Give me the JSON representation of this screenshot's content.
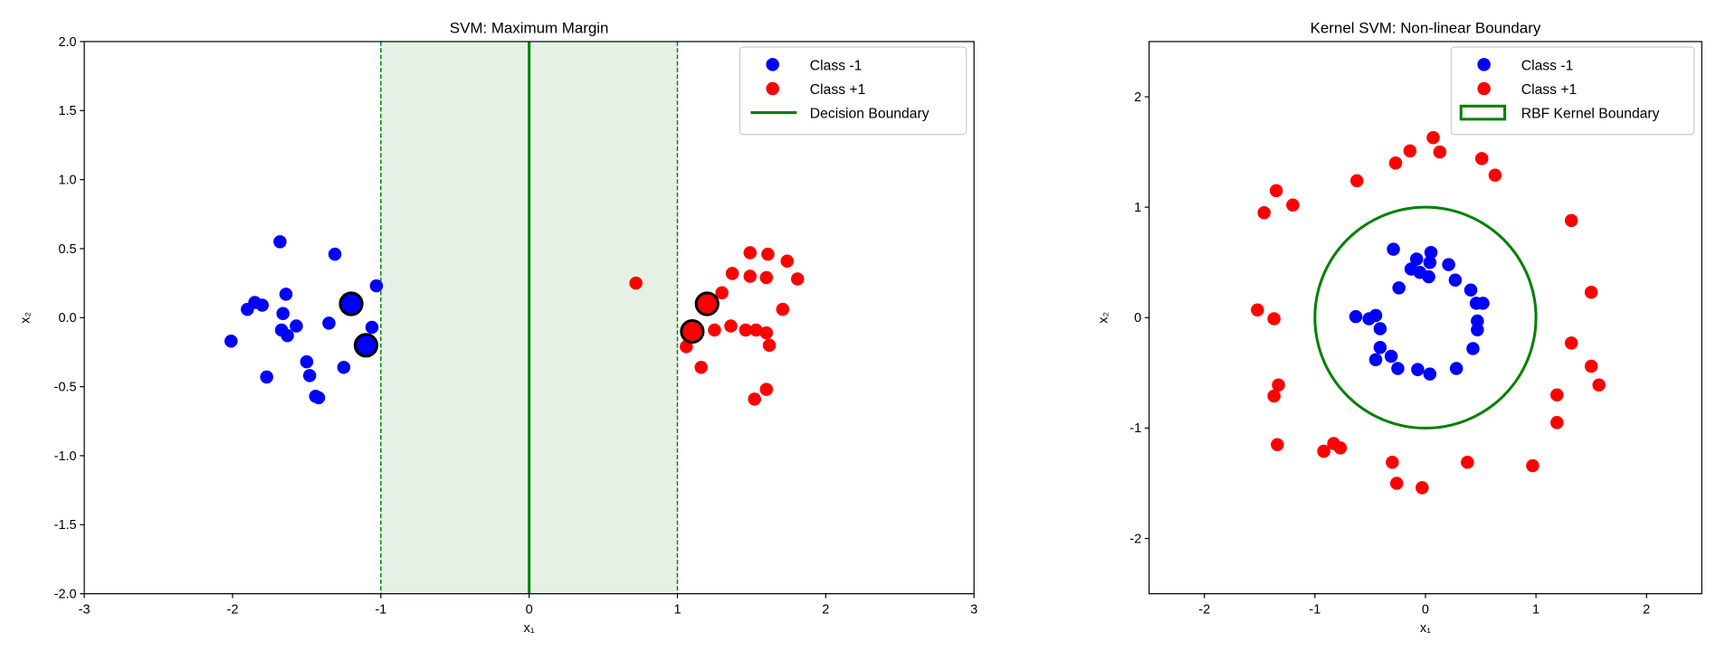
{
  "chart_data": [
    {
      "type": "scatter",
      "title": "SVM: Maximum Margin",
      "xlabel": "x₁",
      "ylabel": "x₂",
      "xlim": [
        -3,
        3
      ],
      "ylim": [
        -2,
        2
      ],
      "xticks": [
        -3,
        -2,
        -1,
        0,
        1,
        2,
        3
      ],
      "yticks": [
        -2.0,
        -1.5,
        -1.0,
        -0.5,
        0.0,
        0.5,
        1.0,
        1.5,
        2.0
      ],
      "ytick_labels": [
        "-2.0",
        "-1.5",
        "-1.0",
        "-0.5",
        "0.0",
        "0.5",
        "1.0",
        "1.5",
        "2.0"
      ],
      "grid": false,
      "legend_position": "top-right",
      "decision_boundary": {
        "x": 0,
        "color": "#008000",
        "label": "Decision Boundary"
      },
      "margin_lines": {
        "x": [
          -1,
          1
        ],
        "color": "#008000",
        "style": "dashed"
      },
      "margin_fill": {
        "from": -1,
        "to": 1,
        "color": "#e4f1e4"
      },
      "series": [
        {
          "name": "Class -1",
          "color": "#0000ff",
          "points": [
            [
              -1.68,
              0.55
            ],
            [
              -1.31,
              0.46
            ],
            [
              -1.03,
              0.23
            ],
            [
              -1.64,
              0.17
            ],
            [
              -1.85,
              0.11
            ],
            [
              -1.8,
              0.09
            ],
            [
              -1.9,
              0.06
            ],
            [
              -1.66,
              0.03
            ],
            [
              -1.35,
              -0.04
            ],
            [
              -1.57,
              -0.06
            ],
            [
              -1.67,
              -0.09
            ],
            [
              -1.06,
              -0.07
            ],
            [
              -1.63,
              -0.13
            ],
            [
              -2.01,
              -0.17
            ],
            [
              -1.5,
              -0.32
            ],
            [
              -1.25,
              -0.36
            ],
            [
              -1.48,
              -0.42
            ],
            [
              -1.77,
              -0.43
            ],
            [
              -1.42,
              -0.58
            ],
            [
              -1.44,
              -0.57
            ]
          ]
        },
        {
          "name": "Class +1",
          "color": "#ff0000",
          "points": [
            [
              0.72,
              0.25
            ],
            [
              1.49,
              0.47
            ],
            [
              1.61,
              0.46
            ],
            [
              1.74,
              0.41
            ],
            [
              1.37,
              0.32
            ],
            [
              1.49,
              0.3
            ],
            [
              1.6,
              0.29
            ],
            [
              1.81,
              0.28
            ],
            [
              1.3,
              0.18
            ],
            [
              1.71,
              0.06
            ],
            [
              1.36,
              -0.06
            ],
            [
              1.25,
              -0.09
            ],
            [
              1.46,
              -0.09
            ],
            [
              1.53,
              -0.09
            ],
            [
              1.6,
              -0.11
            ],
            [
              1.62,
              -0.2
            ],
            [
              1.06,
              -0.21
            ],
            [
              1.16,
              -0.36
            ],
            [
              1.6,
              -0.52
            ],
            [
              1.52,
              -0.59
            ]
          ]
        }
      ],
      "support_vectors": [
        {
          "x": -1.2,
          "y": 0.1,
          "class": "Class -1"
        },
        {
          "x": -1.1,
          "y": -0.2,
          "class": "Class -1"
        },
        {
          "x": 1.2,
          "y": 0.1,
          "class": "Class +1"
        },
        {
          "x": 1.1,
          "y": -0.1,
          "class": "Class +1"
        }
      ]
    },
    {
      "type": "scatter",
      "title": "Kernel SVM: Non-linear Boundary",
      "xlabel": "x₁",
      "ylabel": "x₂",
      "xlim": [
        -2.5,
        2.5
      ],
      "ylim": [
        -2.5,
        2.5
      ],
      "xticks": [
        -2,
        -1,
        0,
        1,
        2
      ],
      "yticks": [
        -2,
        -1,
        0,
        1,
        2
      ],
      "ytick_labels": [
        "-2",
        "-1",
        "0",
        "1",
        "2"
      ],
      "grid": false,
      "legend_position": "top-right",
      "boundary_circle": {
        "center": [
          0,
          0
        ],
        "radius": 1.0,
        "color": "#008000",
        "label": "RBF Kernel Boundary"
      },
      "series": [
        {
          "name": "Class -1",
          "color": "#0000ff",
          "points": [
            [
              -0.29,
              0.62
            ],
            [
              -0.08,
              0.53
            ],
            [
              0.05,
              0.59
            ],
            [
              0.04,
              0.5
            ],
            [
              -0.13,
              0.44
            ],
            [
              -0.05,
              0.41
            ],
            [
              0.03,
              0.37
            ],
            [
              0.21,
              0.48
            ],
            [
              0.27,
              0.34
            ],
            [
              -0.24,
              0.27
            ],
            [
              0.41,
              0.25
            ],
            [
              0.46,
              0.13
            ],
            [
              0.52,
              0.13
            ],
            [
              0.47,
              -0.03
            ],
            [
              0.47,
              -0.11
            ],
            [
              -0.63,
              0.01
            ],
            [
              -0.51,
              -0.01
            ],
            [
              -0.45,
              0.02
            ],
            [
              -0.41,
              -0.1
            ],
            [
              -0.41,
              -0.27
            ],
            [
              -0.31,
              -0.35
            ],
            [
              -0.45,
              -0.38
            ],
            [
              -0.25,
              -0.46
            ],
            [
              -0.07,
              -0.47
            ],
            [
              0.04,
              -0.51
            ],
            [
              0.28,
              -0.46
            ],
            [
              0.43,
              -0.28
            ]
          ]
        },
        {
          "name": "Class +1",
          "color": "#ff0000",
          "points": [
            [
              0.07,
              1.63
            ],
            [
              0.13,
              1.5
            ],
            [
              -0.14,
              1.51
            ],
            [
              -0.27,
              1.4
            ],
            [
              0.51,
              1.44
            ],
            [
              0.63,
              1.29
            ],
            [
              -0.62,
              1.24
            ],
            [
              -1.35,
              1.15
            ],
            [
              -1.2,
              1.02
            ],
            [
              -1.46,
              0.95
            ],
            [
              1.32,
              0.88
            ],
            [
              -1.52,
              0.07
            ],
            [
              -1.37,
              -0.01
            ],
            [
              1.5,
              0.23
            ],
            [
              1.32,
              -0.23
            ],
            [
              1.5,
              -0.44
            ],
            [
              1.57,
              -0.61
            ],
            [
              1.19,
              -0.7
            ],
            [
              1.19,
              -0.95
            ],
            [
              -1.33,
              -0.61
            ],
            [
              -1.37,
              -0.71
            ],
            [
              -1.34,
              -1.15
            ],
            [
              -0.92,
              -1.21
            ],
            [
              -0.83,
              -1.14
            ],
            [
              -0.77,
              -1.18
            ],
            [
              -0.3,
              -1.31
            ],
            [
              -0.26,
              -1.5
            ],
            [
              -0.03,
              -1.54
            ],
            [
              0.38,
              -1.31
            ],
            [
              0.97,
              -1.34
            ]
          ]
        }
      ]
    }
  ]
}
